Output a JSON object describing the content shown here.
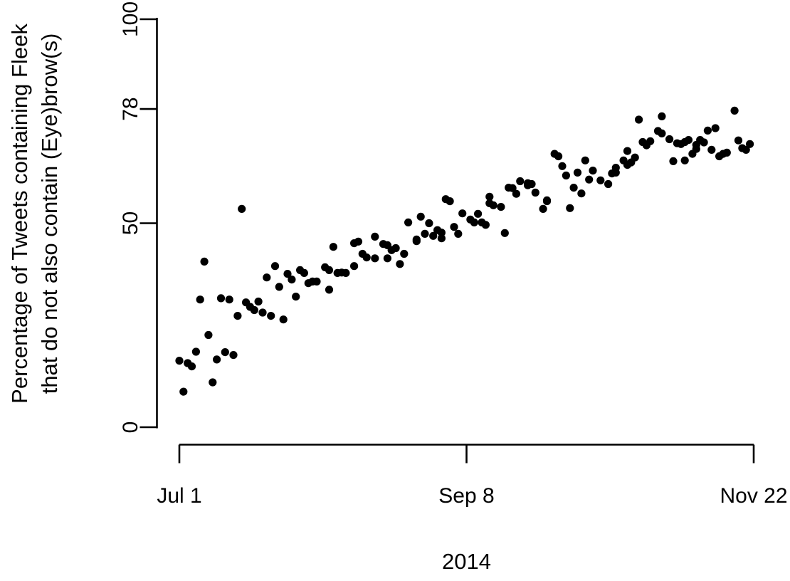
{
  "figure": {
    "background": "#ffffff",
    "ink_color": "#000000",
    "point_color": "#000000"
  },
  "chart_data": {
    "type": "scatter",
    "title": "",
    "ylabel_line1": "Percentage of Tweets containing Fleek",
    "ylabel_line2": "that do not also contain (Eye)brow(s)",
    "xlabel": "2014",
    "grid": false,
    "legend": "none",
    "x_axis": {
      "unit": "days since Jul 1, 2014",
      "tick_labels": [
        "Jul 1",
        "Sep 8",
        "Nov 22"
      ],
      "tick_days": [
        0,
        69,
        144
      ]
    },
    "y_axis": {
      "tick_labels": [
        "0",
        "50",
        "78",
        "100"
      ],
      "tick_values": [
        0,
        50,
        78,
        100
      ],
      "ylim": [
        0,
        100
      ]
    },
    "points": [
      [
        0,
        16.3
      ],
      [
        1,
        8.7
      ],
      [
        2,
        15.7
      ],
      [
        3,
        14.9
      ],
      [
        4,
        18.5
      ],
      [
        5,
        31.3
      ],
      [
        6,
        40.6
      ],
      [
        7,
        22.6
      ],
      [
        8,
        11.0
      ],
      [
        9,
        16.6
      ],
      [
        10,
        31.6
      ],
      [
        11,
        18.4
      ],
      [
        12,
        31.3
      ],
      [
        13,
        17.7
      ],
      [
        14,
        27.3
      ],
      [
        15,
        53.5
      ],
      [
        16,
        30.6
      ],
      [
        17,
        29.5
      ],
      [
        18,
        28.7
      ],
      [
        19,
        30.8
      ],
      [
        20,
        28.1
      ],
      [
        21,
        36.7
      ],
      [
        22,
        27.3
      ],
      [
        23,
        39.5
      ],
      [
        24,
        34.4
      ],
      [
        25,
        26.4
      ],
      [
        26,
        37.6
      ],
      [
        27,
        36.2
      ],
      [
        28,
        32.0
      ],
      [
        29,
        38.5
      ],
      [
        30,
        37.8
      ],
      [
        31,
        35.3
      ],
      [
        32,
        35.7
      ],
      [
        33,
        35.7
      ],
      [
        35,
        39.2
      ],
      [
        36,
        38.5
      ],
      [
        36,
        33.7
      ],
      [
        37,
        44.2
      ],
      [
        38,
        37.8
      ],
      [
        39,
        37.9
      ],
      [
        40,
        37.8
      ],
      [
        42,
        39.5
      ],
      [
        42,
        45.1
      ],
      [
        43,
        45.5
      ],
      [
        44,
        42.5
      ],
      [
        45,
        41.6
      ],
      [
        47,
        46.7
      ],
      [
        47,
        41.4
      ],
      [
        49,
        44.9
      ],
      [
        50,
        44.6
      ],
      [
        50,
        41.4
      ],
      [
        51,
        43.4
      ],
      [
        52,
        43.9
      ],
      [
        53,
        40.0
      ],
      [
        54,
        42.5
      ],
      [
        55,
        50.2
      ],
      [
        57,
        46.0
      ],
      [
        57,
        45.6
      ],
      [
        58,
        51.6
      ],
      [
        59,
        47.4
      ],
      [
        60,
        50.0
      ],
      [
        61,
        46.9
      ],
      [
        62,
        48.3
      ],
      [
        63,
        47.7
      ],
      [
        63,
        46.3
      ],
      [
        64,
        55.9
      ],
      [
        65,
        55.4
      ],
      [
        66,
        49.1
      ],
      [
        67,
        47.4
      ],
      [
        68,
        52.4
      ],
      [
        70,
        50.9
      ],
      [
        71,
        50.2
      ],
      [
        72,
        52.3
      ],
      [
        73,
        50.2
      ],
      [
        74,
        49.6
      ],
      [
        75,
        56.5
      ],
      [
        75,
        54.9
      ],
      [
        76,
        54.4
      ],
      [
        78,
        54.0
      ],
      [
        79,
        47.6
      ],
      [
        80,
        58.7
      ],
      [
        81,
        58.6
      ],
      [
        82,
        57.2
      ],
      [
        83,
        60.3
      ],
      [
        85,
        59.3
      ],
      [
        85,
        59.8
      ],
      [
        86,
        59.6
      ],
      [
        87,
        57.5
      ],
      [
        89,
        53.5
      ],
      [
        90,
        55.4
      ],
      [
        90,
        55.6
      ],
      [
        92,
        67.0
      ],
      [
        93,
        66.4
      ],
      [
        94,
        64.0
      ],
      [
        95,
        61.7
      ],
      [
        96,
        53.7
      ],
      [
        97,
        58.7
      ],
      [
        98,
        62.4
      ],
      [
        99,
        57.3
      ],
      [
        100,
        65.4
      ],
      [
        101,
        60.7
      ],
      [
        102,
        62.9
      ],
      [
        104,
        60.5
      ],
      [
        106,
        59.6
      ],
      [
        107,
        62.2
      ],
      [
        108,
        62.4
      ],
      [
        108,
        63.6
      ],
      [
        110,
        65.4
      ],
      [
        111,
        67.7
      ],
      [
        111,
        64.3
      ],
      [
        112,
        64.9
      ],
      [
        113,
        66.1
      ],
      [
        114,
        75.4
      ],
      [
        115,
        69.9
      ],
      [
        116,
        69.1
      ],
      [
        117,
        70.1
      ],
      [
        119,
        72.6
      ],
      [
        120,
        76.2
      ],
      [
        120,
        72.0
      ],
      [
        122,
        70.6
      ],
      [
        123,
        65.2
      ],
      [
        124,
        69.6
      ],
      [
        125,
        69.4
      ],
      [
        126,
        69.9
      ],
      [
        126,
        65.4
      ],
      [
        127,
        70.4
      ],
      [
        128,
        67.0
      ],
      [
        129,
        69.2
      ],
      [
        129,
        68.2
      ],
      [
        130,
        70.4
      ],
      [
        131,
        69.8
      ],
      [
        132,
        72.7
      ],
      [
        133,
        68.0
      ],
      [
        134,
        73.3
      ],
      [
        135,
        66.4
      ],
      [
        136,
        67.0
      ],
      [
        137,
        67.3
      ],
      [
        139,
        77.6
      ],
      [
        140,
        70.3
      ],
      [
        141,
        68.4
      ],
      [
        142,
        68.0
      ],
      [
        143,
        69.4
      ]
    ]
  }
}
